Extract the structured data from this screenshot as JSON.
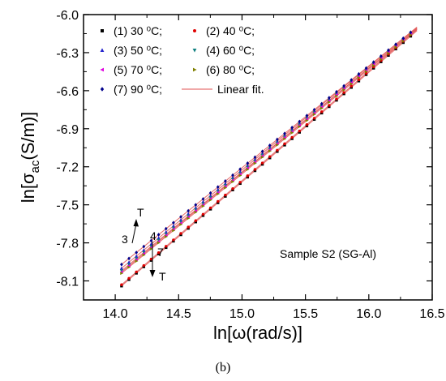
{
  "chart_data": {
    "type": "scatter",
    "xlabel": "ln[ω(rad/s)]",
    "ylabel": {
      "prefix": "ln[σ",
      "sub": "ac",
      "suffix": "(S/m)]"
    },
    "xlim": [
      13.75,
      16.5
    ],
    "ylim": [
      -8.25,
      -6.0
    ],
    "xticks": [
      "14.0",
      "14.5",
      "15.0",
      "15.5",
      "16.0",
      "16.5"
    ],
    "yticks": [
      "-6.0",
      "-6.3",
      "-6.6",
      "-6.9",
      "-7.2",
      "-7.5",
      "-7.8",
      "-8.1"
    ],
    "grid": false,
    "legend_position": "top-left",
    "series": [
      {
        "name": "(1) 30 ⁰C;",
        "color": "#000000",
        "marker": "square",
        "x_start": 14.05,
        "x_end": 16.33,
        "y_start": -8.14,
        "y_end": -6.17
      },
      {
        "name": "(2) 40 ⁰C;",
        "color": "#e00000",
        "marker": "circle",
        "x_start": 14.05,
        "x_end": 16.33,
        "y_start": -8.13,
        "y_end": -6.16
      },
      {
        "name": "(3) 50 ⁰C;",
        "color": "#2222cc",
        "marker": "triangle-up",
        "x_start": 14.05,
        "x_end": 16.33,
        "y_start": -8.0,
        "y_end": -6.14
      },
      {
        "name": "(4) 60 ⁰C;",
        "color": "#108080",
        "marker": "triangle-down",
        "x_start": 14.05,
        "x_end": 16.33,
        "y_start": -8.02,
        "y_end": -6.15
      },
      {
        "name": "(5) 70 ⁰C;",
        "color": "#e000e0",
        "marker": "triangle-left",
        "x_start": 14.05,
        "x_end": 16.33,
        "y_start": -8.03,
        "y_end": -6.15
      },
      {
        "name": "(6) 80 ⁰C;",
        "color": "#808000",
        "marker": "triangle-right",
        "x_start": 14.05,
        "x_end": 16.33,
        "y_start": -8.04,
        "y_end": -6.16
      },
      {
        "name": "(7) 90 ⁰C;",
        "color": "#00008b",
        "marker": "diamond",
        "x_start": 14.05,
        "x_end": 16.33,
        "y_start": -7.97,
        "y_end": -6.14
      }
    ],
    "fit": {
      "name": "Linear fit.",
      "color": "#e05050"
    },
    "annotations": {
      "sample": "Sample S2 (SG-Al)",
      "arrow_up_top": "T",
      "arrow_up_left": "3",
      "arrow_up_right": "4",
      "arrow_down_right": "7",
      "arrow_down_bottom": "T"
    },
    "caption": "(b)"
  }
}
